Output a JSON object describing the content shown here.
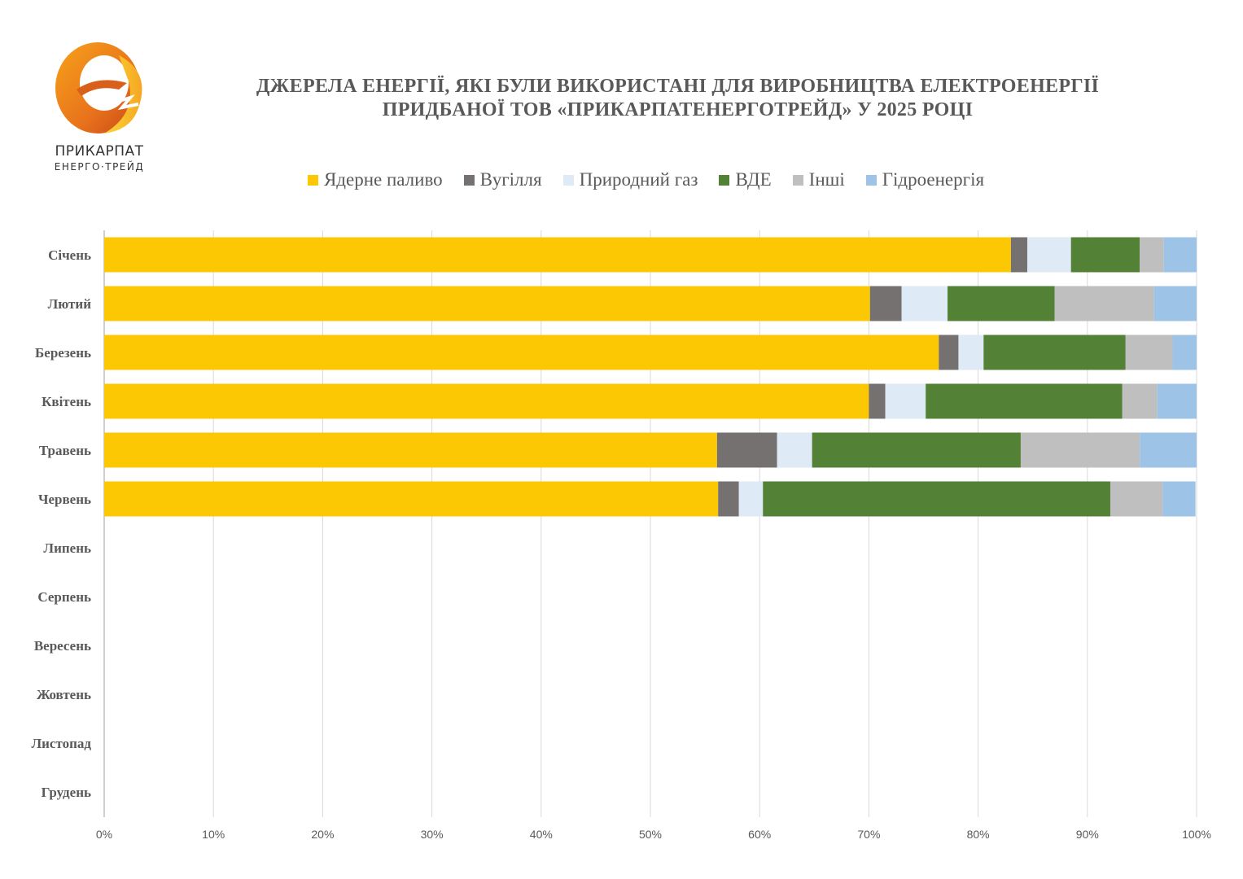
{
  "logo": {
    "line1": "ПРИКАРПАТ",
    "line2": "ЕНЕРГО·ТРЕЙД"
  },
  "chart_data": {
    "type": "bar",
    "orientation": "horizontal",
    "stacked": "percent",
    "title_line1": "ДЖЕРЕЛА ЕНЕРГІЇ, ЯКІ БУЛИ ВИКОРИСТАНІ ДЛЯ ВИРОБНИЦТВА ЕЛЕКТРОЕНЕРГІЇ",
    "title_line2": "ПРИДБАНОЇ ТОВ «ПРИКАРПАТЕНЕРГОТРЕЙД» У 2025 РОЦІ",
    "categories": [
      "Січень",
      "Лютий",
      "Березень",
      "Квітень",
      "Травень",
      "Червень",
      "Липень",
      "Серпень",
      "Вересень",
      "Жовтень",
      "Листопад",
      "Грудень"
    ],
    "xlim": [
      0,
      100
    ],
    "x_ticks": [
      "0%",
      "10%",
      "20%",
      "30%",
      "40%",
      "50%",
      "60%",
      "70%",
      "80%",
      "90%",
      "100%"
    ],
    "grid": true,
    "legend_position": "top",
    "series": [
      {
        "name": "Ядерне паливо",
        "color": "#FCC804",
        "values": [
          83.0,
          70.1,
          76.4,
          70.0,
          56.1,
          56.2,
          null,
          null,
          null,
          null,
          null,
          null
        ]
      },
      {
        "name": "Вугілля",
        "color": "#767171",
        "values": [
          1.5,
          2.9,
          1.8,
          1.5,
          5.5,
          1.9,
          null,
          null,
          null,
          null,
          null,
          null
        ]
      },
      {
        "name": "Природний газ",
        "color": "#DEEAF6",
        "values": [
          4.0,
          4.2,
          2.3,
          3.7,
          3.2,
          2.2,
          null,
          null,
          null,
          null,
          null,
          null
        ]
      },
      {
        "name": "ВДЕ",
        "color": "#538135",
        "values": [
          6.3,
          9.8,
          13.0,
          18.0,
          19.1,
          31.8,
          null,
          null,
          null,
          null,
          null,
          null
        ]
      },
      {
        "name": "Інші",
        "color": "#BFBFBF",
        "values": [
          2.2,
          9.1,
          4.3,
          3.2,
          10.9,
          4.8,
          null,
          null,
          null,
          null,
          null,
          null
        ]
      },
      {
        "name": "Гідроенергія",
        "color": "#9DC3E6",
        "values": [
          3.0,
          3.9,
          2.2,
          3.6,
          5.2,
          3.0,
          null,
          null,
          null,
          null,
          null,
          null
        ]
      }
    ]
  }
}
